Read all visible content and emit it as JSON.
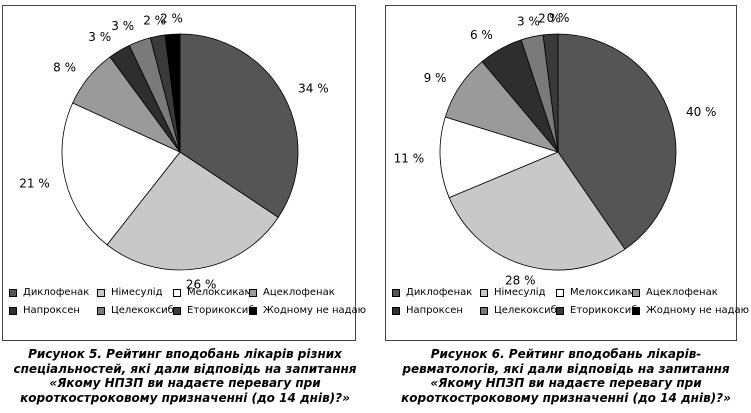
{
  "chart_data": [
    {
      "type": "pie",
      "categories": [
        "Диклофенак",
        "Німесулід",
        "Мелоксикам",
        "Ацеклофенак",
        "Напроксен",
        "Целекоксиб",
        "Еторикоксиб",
        "Жодному не надаю"
      ],
      "values": [
        34,
        26,
        21,
        8,
        3,
        3,
        2,
        2
      ],
      "labels": [
        "34 %",
        "26 %",
        "21 %",
        "8 %",
        "3 %",
        "3 %",
        "2 %",
        "2 %"
      ],
      "colors": [
        "#555555",
        "#c8c8c8",
        "#ffffff",
        "#9a9a9a",
        "#2e2e2e",
        "#7a7a7a",
        "#3a3a3a",
        "#000000"
      ],
      "legend_position": "bottom",
      "caption_lines": [
        "Рисунок 5. Рейтинг вподобань лікарів різних",
        "спеціальностей, які дали відповідь на запитання",
        "«Якому НПЗП ви надаєте перевагу при",
        "короткостроковому призначенні (до 14 днів)?»"
      ]
    },
    {
      "type": "pie",
      "categories": [
        "Диклофенак",
        "Німесулід",
        "Мелоксикам",
        "Ацеклофенак",
        "Напроксен",
        "Целекоксиб",
        "Еторикоксиб",
        "Жодному не надаю"
      ],
      "values": [
        40,
        28,
        11,
        9,
        6,
        3,
        2,
        0
      ],
      "labels": [
        "40 %",
        "28 %",
        "11 %",
        "9 %",
        "6 %",
        "3 %",
        "2 %",
        "0 %"
      ],
      "colors": [
        "#555555",
        "#c8c8c8",
        "#ffffff",
        "#9a9a9a",
        "#2e2e2e",
        "#7a7a7a",
        "#3a3a3a",
        "#000000"
      ],
      "legend_position": "bottom",
      "caption_lines": [
        "Рисунок 6. Рейтинг вподобань лікарів-",
        "ревматологів, які дали відповідь на запитання",
        "«Якому НПЗП ви надаєте перевагу при",
        "короткостроковому призначенні (до 14 днів)?»"
      ]
    }
  ]
}
